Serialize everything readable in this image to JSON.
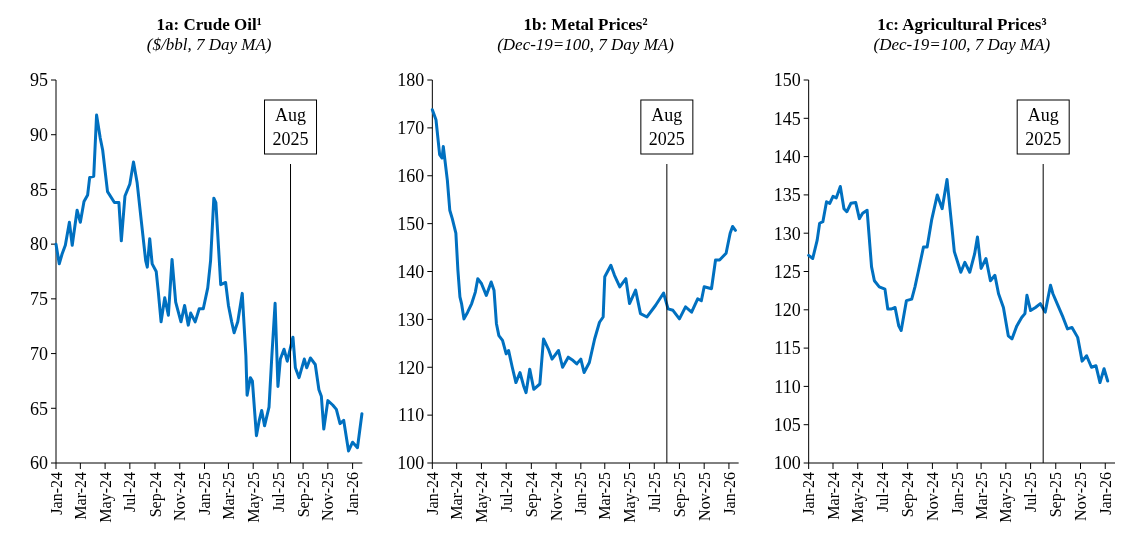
{
  "chart_data": [
    {
      "type": "line",
      "title": "1a: Crude Oil¹",
      "subtitle": "($/bbl, 7 Day MA)",
      "color": "#0070c0",
      "grid": false,
      "marker": "none",
      "line_style": "solid",
      "xlim": [
        "2024-01-01",
        "2026-01-25"
      ],
      "ylim": [
        60,
        95
      ],
      "yticks": [
        60,
        65,
        70,
        75,
        80,
        85,
        90,
        95
      ],
      "xticks": [
        {
          "value": "2024-01",
          "label": "Jan-24"
        },
        {
          "value": "2024-03",
          "label": "Mar-24"
        },
        {
          "value": "2024-05",
          "label": "May-24"
        },
        {
          "value": "2024-07",
          "label": "Jul-24"
        },
        {
          "value": "2024-09",
          "label": "Sep-24"
        },
        {
          "value": "2024-11",
          "label": "Nov-24"
        },
        {
          "value": "2025-01",
          "label": "Jan-25"
        },
        {
          "value": "2025-03",
          "label": "Mar-25"
        },
        {
          "value": "2025-05",
          "label": "May-25"
        },
        {
          "value": "2025-07",
          "label": "Jul-25"
        },
        {
          "value": "2025-09",
          "label": "Sep-25"
        },
        {
          "value": "2025-11",
          "label": "Nov-25"
        },
        {
          "value": "2026-01",
          "label": "Jan-26"
        }
      ],
      "ref_lines": [
        {
          "axis": "x",
          "value": "2025-08",
          "label": "Aug\n2025",
          "color": "#000000"
        }
      ],
      "x": [
        "2024-01-01",
        "2024-01-09",
        "2024-01-16",
        "2024-01-24",
        "2024-02-03",
        "2024-02-10",
        "2024-02-22",
        "2024-03-01",
        "2024-03-10",
        "2024-03-19",
        "2024-03-24",
        "2024-04-03",
        "2024-04-10",
        "2024-04-19",
        "2024-04-25",
        "2024-05-07",
        "2024-05-24",
        "2024-06-04",
        "2024-06-10",
        "2024-06-19",
        "2024-07-01",
        "2024-07-10",
        "2024-07-19",
        "2024-07-29",
        "2024-08-09",
        "2024-08-13",
        "2024-08-19",
        "2024-08-25",
        "2024-09-04",
        "2024-09-09",
        "2024-09-16",
        "2024-09-25",
        "2024-10-04",
        "2024-10-13",
        "2024-10-22",
        "2024-11-04",
        "2024-11-13",
        "2024-11-22",
        "2024-11-28",
        "2024-12-09",
        "2024-12-19",
        "2024-12-29",
        "2025-01-09",
        "2025-01-16",
        "2025-01-24",
        "2025-01-29",
        "2025-02-10",
        "2025-02-22",
        "2025-03-01",
        "2025-03-09",
        "2025-03-15",
        "2025-03-24",
        "2025-04-04",
        "2025-04-13",
        "2025-04-16",
        "2025-04-24",
        "2025-04-29",
        "2025-05-09",
        "2025-05-16",
        "2025-05-22",
        "2025-05-29",
        "2025-06-09",
        "2025-06-16",
        "2025-06-24",
        "2025-07-01",
        "2025-07-07",
        "2025-07-16",
        "2025-07-24",
        "2025-08-07",
        "2025-08-13",
        "2025-08-22",
        "2025-09-04",
        "2025-09-10",
        "2025-09-19",
        "2025-10-01",
        "2025-10-10",
        "2025-10-16",
        "2025-10-22",
        "2025-11-01",
        "2025-11-13",
        "2025-11-22",
        "2025-12-01",
        "2025-12-10",
        "2025-12-22",
        "2026-01-01",
        "2026-01-13",
        "2026-01-24"
      ],
      "values": [
        80.0,
        78.2,
        79.1,
        79.9,
        82.0,
        79.9,
        83.1,
        82.0,
        83.9,
        84.5,
        86.1,
        86.2,
        91.8,
        89.7,
        88.6,
        84.8,
        83.8,
        83.8,
        80.3,
        84.4,
        85.5,
        87.5,
        85.6,
        82.2,
        78.5,
        77.9,
        80.5,
        78.2,
        77.5,
        75.7,
        72.9,
        75.1,
        73.5,
        78.6,
        74.7,
        72.9,
        74.4,
        72.6,
        73.7,
        72.9,
        74.1,
        74.1,
        76.0,
        78.5,
        84.2,
        83.8,
        76.3,
        76.5,
        74.4,
        72.9,
        71.9,
        72.9,
        75.5,
        69.8,
        66.2,
        67.8,
        67.5,
        62.5,
        63.9,
        64.8,
        63.4,
        65.1,
        69.8,
        74.6,
        67.0,
        69.5,
        70.4,
        69.3,
        71.5,
        68.7,
        67.8,
        69.5,
        68.7,
        69.6,
        69.0,
        66.7,
        66.1,
        63.1,
        65.7,
        65.3,
        64.9,
        63.6,
        63.9,
        61.1,
        61.9,
        61.4,
        64.5
      ]
    },
    {
      "type": "line",
      "title": "1b: Metal Prices²",
      "subtitle": "(Dec-19=100, 7 Day MA)",
      "color": "#0070c0",
      "grid": false,
      "marker": "none",
      "line_style": "solid",
      "xlim": [
        "2024-01-01",
        "2026-01-25"
      ],
      "ylim": [
        100,
        180
      ],
      "yticks": [
        100,
        110,
        120,
        130,
        140,
        150,
        160,
        170,
        180
      ],
      "xticks": [
        {
          "value": "2024-01",
          "label": "Jan-24"
        },
        {
          "value": "2024-03",
          "label": "Mar-24"
        },
        {
          "value": "2024-05",
          "label": "May-24"
        },
        {
          "value": "2024-07",
          "label": "Jul-24"
        },
        {
          "value": "2024-09",
          "label": "Sep-24"
        },
        {
          "value": "2024-11",
          "label": "Nov-24"
        },
        {
          "value": "2025-01",
          "label": "Jan-25"
        },
        {
          "value": "2025-03",
          "label": "Mar-25"
        },
        {
          "value": "2025-05",
          "label": "May-25"
        },
        {
          "value": "2025-07",
          "label": "Jul-25"
        },
        {
          "value": "2025-09",
          "label": "Sep-25"
        },
        {
          "value": "2025-11",
          "label": "Nov-25"
        },
        {
          "value": "2026-01",
          "label": "Jan-26"
        }
      ],
      "ref_lines": [
        {
          "axis": "x",
          "value": "2025-08",
          "label": "Aug\n2025",
          "color": "#000000"
        }
      ],
      "x": [
        "2024-01-01",
        "2024-01-10",
        "2024-01-19",
        "2024-01-25",
        "2024-01-28",
        "2024-02-07",
        "2024-02-13",
        "2024-02-19",
        "2024-02-28",
        "2024-03-04",
        "2024-03-09",
        "2024-03-13",
        "2024-03-19",
        "2024-03-28",
        "2024-04-07",
        "2024-04-16",
        "2024-04-22",
        "2024-05-01",
        "2024-05-13",
        "2024-05-25",
        "2024-06-01",
        "2024-06-07",
        "2024-06-13",
        "2024-06-22",
        "2024-07-01",
        "2024-07-07",
        "2024-07-16",
        "2024-07-25",
        "2024-08-04",
        "2024-08-13",
        "2024-08-19",
        "2024-08-28",
        "2024-09-07",
        "2024-09-22",
        "2024-10-01",
        "2024-10-13",
        "2024-10-22",
        "2024-11-07",
        "2024-11-17",
        "2024-12-01",
        "2024-12-13",
        "2024-12-22",
        "2025-01-01",
        "2025-01-09",
        "2025-01-22",
        "2025-02-04",
        "2025-02-16",
        "2025-02-25",
        "2025-03-01",
        "2025-03-16",
        "2025-03-25",
        "2025-04-07",
        "2025-04-22",
        "2025-05-01",
        "2025-05-16",
        "2025-05-28",
        "2025-06-13",
        "2025-07-04",
        "2025-07-24",
        "2025-08-04",
        "2025-08-16",
        "2025-09-01",
        "2025-09-16",
        "2025-10-01",
        "2025-10-16",
        "2025-10-25",
        "2025-11-01",
        "2025-11-19",
        "2025-11-29",
        "2025-12-09",
        "2025-12-25",
        "2026-01-04",
        "2026-01-10",
        "2026-01-17"
      ],
      "values": [
        173.8,
        171.7,
        164.4,
        163.7,
        166.1,
        159.1,
        152.8,
        151.1,
        148.0,
        140.3,
        134.7,
        133.3,
        130.1,
        131.5,
        133.3,
        135.7,
        138.5,
        137.5,
        135.0,
        137.8,
        136.1,
        129.1,
        126.6,
        125.6,
        122.8,
        123.5,
        120.0,
        116.8,
        118.9,
        116.1,
        114.7,
        119.6,
        115.4,
        116.5,
        125.9,
        123.8,
        121.7,
        123.5,
        120.0,
        122.1,
        121.4,
        120.7,
        121.7,
        118.9,
        121.0,
        125.9,
        129.4,
        130.5,
        138.9,
        141.3,
        139.2,
        136.8,
        138.5,
        133.3,
        136.1,
        131.2,
        130.5,
        132.9,
        135.5,
        132.2,
        131.9,
        130.1,
        132.6,
        131.5,
        134.3,
        133.9,
        136.8,
        136.4,
        142.4,
        142.4,
        143.8,
        148.0,
        149.4,
        148.6
      ]
    },
    {
      "type": "line",
      "title": "1c: Agricultural Prices³",
      "subtitle": "(Dec-19=100, 7 Day MA)",
      "color": "#0070c0",
      "grid": false,
      "marker": "none",
      "line_style": "solid",
      "xlim": [
        "2024-01-01",
        "2026-01-25"
      ],
      "ylim": [
        100,
        150
      ],
      "yticks": [
        100,
        105,
        110,
        115,
        120,
        125,
        130,
        135,
        140,
        145,
        150
      ],
      "xticks": [
        {
          "value": "2024-01",
          "label": "Jan-24"
        },
        {
          "value": "2024-03",
          "label": "Mar-24"
        },
        {
          "value": "2024-05",
          "label": "May-24"
        },
        {
          "value": "2024-07",
          "label": "Jul-24"
        },
        {
          "value": "2024-09",
          "label": "Sep-24"
        },
        {
          "value": "2024-11",
          "label": "Nov-24"
        },
        {
          "value": "2025-01",
          "label": "Jan-25"
        },
        {
          "value": "2025-03",
          "label": "Mar-25"
        },
        {
          "value": "2025-05",
          "label": "May-25"
        },
        {
          "value": "2025-07",
          "label": "Jul-25"
        },
        {
          "value": "2025-09",
          "label": "Sep-25"
        },
        {
          "value": "2025-11",
          "label": "Nov-25"
        },
        {
          "value": "2026-01",
          "label": "Jan-26"
        }
      ],
      "ref_lines": [
        {
          "axis": "x",
          "value": "2025-08",
          "label": "Aug\n2025",
          "color": "#000000"
        }
      ],
      "x": [
        "2024-01-01",
        "2024-01-11",
        "2024-01-22",
        "2024-01-28",
        "2024-02-05",
        "2024-02-14",
        "2024-02-22",
        "2024-03-01",
        "2024-03-09",
        "2024-03-19",
        "2024-03-28",
        "2024-04-04",
        "2024-04-14",
        "2024-04-26",
        "2024-05-05",
        "2024-05-13",
        "2024-05-24",
        "2024-06-04",
        "2024-06-11",
        "2024-06-23",
        "2024-07-07",
        "2024-07-14",
        "2024-07-22",
        "2024-08-01",
        "2024-08-10",
        "2024-08-16",
        "2024-08-29",
        "2024-09-11",
        "2024-09-19",
        "2024-09-28",
        "2024-10-10",
        "2024-10-19",
        "2024-10-30",
        "2024-11-13",
        "2024-11-25",
        "2024-12-07",
        "2024-12-19",
        "2024-12-25",
        "2025-01-10",
        "2025-01-20",
        "2025-02-01",
        "2025-02-13",
        "2025-02-20",
        "2025-03-01",
        "2025-03-13",
        "2025-03-24",
        "2025-04-04",
        "2025-04-13",
        "2025-04-25",
        "2025-05-07",
        "2025-05-16",
        "2025-05-28",
        "2025-06-09",
        "2025-06-17",
        "2025-06-22",
        "2025-07-01",
        "2025-07-13",
        "2025-07-25",
        "2025-08-06",
        "2025-08-19",
        "2025-08-25",
        "2025-09-06",
        "2025-09-19",
        "2025-09-30",
        "2025-10-11",
        "2025-10-25",
        "2025-11-05",
        "2025-11-16",
        "2025-11-28",
        "2025-12-09",
        "2025-12-19",
        "2025-12-29",
        "2026-01-07"
      ],
      "values": [
        127.1,
        126.7,
        129.1,
        131.3,
        131.5,
        134.1,
        133.9,
        134.8,
        134.6,
        136.1,
        133.2,
        132.8,
        133.9,
        134.0,
        131.9,
        132.6,
        133.0,
        125.6,
        123.8,
        123.0,
        122.7,
        120.1,
        120.1,
        120.3,
        117.9,
        117.3,
        121.2,
        121.4,
        123.0,
        125.2,
        128.2,
        128.2,
        131.7,
        135.0,
        133.2,
        137.0,
        130.8,
        127.6,
        124.9,
        126.2,
        124.9,
        127.3,
        129.5,
        125.4,
        126.7,
        123.8,
        124.5,
        122.1,
        120.3,
        116.6,
        116.2,
        117.9,
        119.0,
        119.5,
        121.9,
        119.9,
        120.3,
        120.8,
        119.7,
        123.2,
        122.1,
        120.6,
        119.0,
        117.5,
        117.7,
        116.4,
        113.3,
        114.0,
        112.5,
        112.7,
        110.5,
        112.3,
        110.7
      ]
    }
  ]
}
